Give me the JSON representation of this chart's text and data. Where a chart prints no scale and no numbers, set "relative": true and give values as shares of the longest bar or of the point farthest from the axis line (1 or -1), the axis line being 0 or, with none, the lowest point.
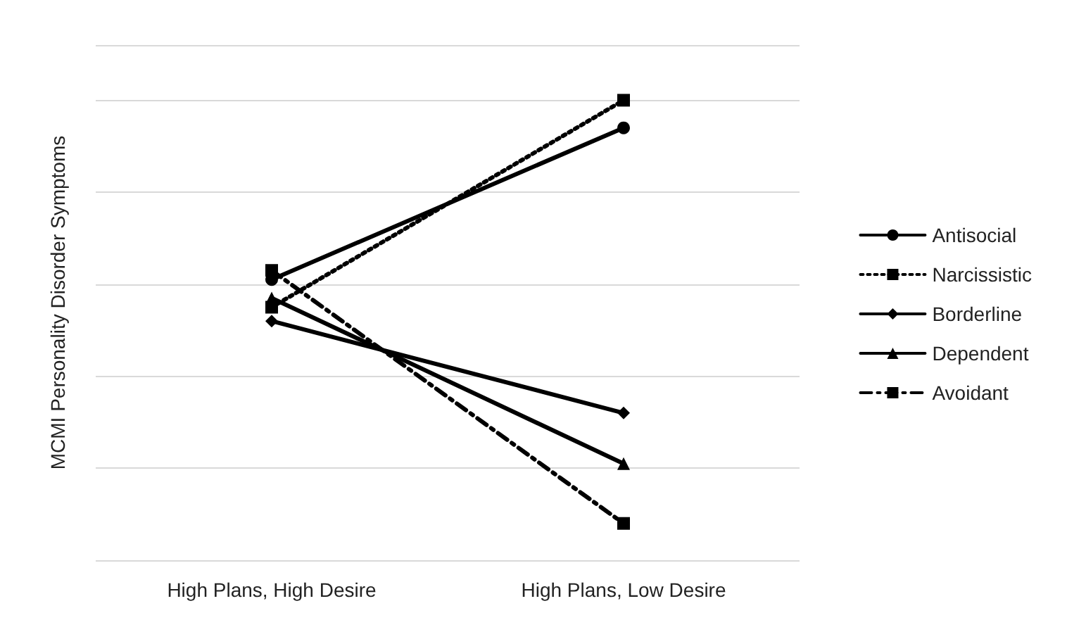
{
  "chart_data": {
    "type": "line",
    "ylabel": "MCMI Personality Disorder Symptoms",
    "categories": [
      "High Plans, High Desire",
      "High Plans, Low Desire"
    ],
    "relative": true,
    "grid": "y",
    "legend": "right",
    "series": [
      {
        "name": "Antisocial",
        "color": "#000000",
        "marker": "circle",
        "line_style": "solid",
        "values": [
          0.61,
          0.94
        ]
      },
      {
        "name": "Narcissistic",
        "color": "#000000",
        "marker": "square",
        "line_style": "dotted",
        "values": [
          0.55,
          1
        ]
      },
      {
        "name": "Borderline",
        "color": "#000000",
        "marker": "diamond",
        "line_style": "solid",
        "values": [
          0.52,
          0.32
        ]
      },
      {
        "name": "Dependent",
        "color": "#000000",
        "marker": "triangle",
        "line_style": "solid",
        "values": [
          0.57,
          0.21
        ]
      },
      {
        "name": "Avoidant",
        "color": "#000000",
        "marker": "square",
        "line_style": "dashed",
        "values": [
          0.63,
          0.08
        ]
      }
    ]
  }
}
